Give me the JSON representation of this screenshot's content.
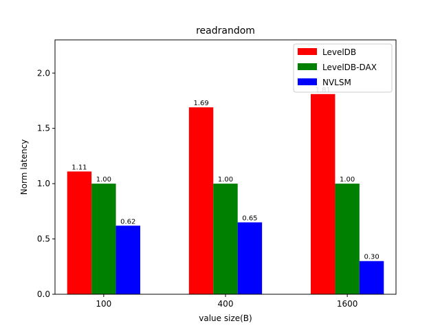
{
  "chart_data": {
    "type": "bar",
    "title": "readrandom",
    "xlabel": "value size(B)",
    "ylabel": "Norm latency",
    "categories": [
      "100",
      "400",
      "1600"
    ],
    "series": [
      {
        "name": "LevelDB",
        "color": "#ff0000",
        "values": [
          1.11,
          1.69,
          1.81
        ],
        "labels": [
          "1.11",
          "1.69",
          "1.81"
        ]
      },
      {
        "name": "LevelDB-DAX",
        "color": "#008000",
        "values": [
          1.0,
          1.0,
          1.0
        ],
        "labels": [
          "1.00",
          "1.00",
          "1.00"
        ]
      },
      {
        "name": "NVLSM",
        "color": "#0000ff",
        "values": [
          0.62,
          0.65,
          0.3
        ],
        "labels": [
          "0.62",
          "0.65",
          "0.30"
        ]
      }
    ],
    "ylim": [
      0,
      2.3
    ],
    "yticks": [
      0.0,
      0.5,
      1.0,
      1.5,
      2.0
    ],
    "ytick_labels": [
      "0.0",
      "0.5",
      "1.0",
      "1.5",
      "2.0"
    ],
    "legend_position": "top-right",
    "grid": false
  }
}
